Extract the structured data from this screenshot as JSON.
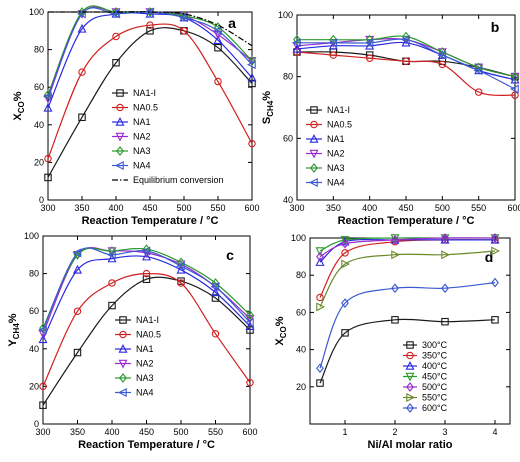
{
  "colors": {
    "NA1-I": "#1a1a1a",
    "NA0.5": "#d22020",
    "NA1": "#2a2ae0",
    "NA2": "#9a2ad0",
    "NA3": "#2a9a2a",
    "NA4": "#3a5ad0",
    "Equilibrium conversion": "#000000",
    "300°C": "#1a1a1a",
    "350°C": "#d22020",
    "400°C": "#2a2ae0",
    "450°C": "#2a9a2a",
    "500°C": "#9a2ad0",
    "550°C": "#6a8a2a",
    "600°C": "#3a5ad0"
  },
  "markers": {
    "NA1-I": "square",
    "NA0.5": "circle",
    "NA1": "triangle-up",
    "NA2": "triangle-down",
    "NA3": "diamond",
    "NA4": "triangle-left",
    "300°C": "square",
    "350°C": "circle",
    "400°C": "triangle-up",
    "450°C": "triangle-down",
    "500°C": "diamond",
    "550°C": "triangle-right",
    "600°C": "diamond"
  },
  "chart_data": [
    {
      "panel": "a",
      "type": "line",
      "xlabel": "Reaction Temperature / °C",
      "ylabel": "X_CO%",
      "x": [
        300,
        350,
        400,
        450,
        500,
        550,
        600
      ],
      "xlim": [
        300,
        600
      ],
      "ylim": [
        0,
        100
      ],
      "xticks": [
        300,
        350,
        400,
        450,
        500,
        550,
        600
      ],
      "yticks": [
        0,
        20,
        40,
        60,
        80,
        100
      ],
      "legend": "bottom-right",
      "series": [
        {
          "name": "NA1-I",
          "values": [
            12,
            44,
            73,
            90,
            90,
            81,
            62
          ]
        },
        {
          "name": "NA0.5",
          "values": [
            22,
            68,
            87,
            93,
            90,
            63,
            30
          ]
        },
        {
          "name": "NA1",
          "values": [
            49,
            91,
            99,
            99,
            97,
            85,
            65
          ]
        },
        {
          "name": "NA2",
          "values": [
            54,
            99,
            100,
            100,
            98,
            88,
            74
          ]
        },
        {
          "name": "NA3",
          "values": [
            56,
            100,
            100,
            100,
            98,
            92,
            74
          ]
        },
        {
          "name": "NA4",
          "values": [
            55,
            99,
            99,
            100,
            97,
            90,
            72
          ]
        },
        {
          "name": "Equilibrium conversion",
          "values": [
            100,
            100,
            100,
            100,
            99,
            93,
            82
          ],
          "style": "dash-dot",
          "markers": false
        }
      ]
    },
    {
      "panel": "b",
      "type": "line",
      "xlabel": "Reaction Temperature / °C",
      "ylabel": "S_CH4%",
      "x": [
        300,
        350,
        400,
        450,
        500,
        550,
        600
      ],
      "xlim": [
        300,
        600
      ],
      "ylim": [
        40,
        100
      ],
      "xticks": [
        300,
        350,
        400,
        450,
        500,
        550,
        600
      ],
      "yticks": [
        40,
        60,
        80,
        100
      ],
      "legend": "bottom-left",
      "series": [
        {
          "name": "NA1-I",
          "values": [
            88,
            88,
            87,
            85,
            85,
            83,
            80
          ]
        },
        {
          "name": "NA0.5",
          "values": [
            88,
            87,
            86,
            85,
            84,
            75,
            74
          ]
        },
        {
          "name": "NA1",
          "values": [
            89,
            90,
            90,
            91,
            87,
            82,
            79
          ]
        },
        {
          "name": "NA2",
          "values": [
            90,
            91,
            92,
            92,
            88,
            83,
            80
          ]
        },
        {
          "name": "NA3",
          "values": [
            92,
            92,
            92,
            93,
            88,
            83,
            80
          ]
        },
        {
          "name": "NA4",
          "values": [
            91,
            91,
            91,
            92,
            87,
            82,
            76
          ]
        }
      ]
    },
    {
      "panel": "c",
      "type": "line",
      "xlabel": "Reaction Temperature / °C",
      "ylabel": "Y_CH4%",
      "x": [
        300,
        350,
        400,
        450,
        500,
        550,
        600
      ],
      "xlim": [
        300,
        600
      ],
      "ylim": [
        0,
        100
      ],
      "xticks": [
        300,
        350,
        400,
        450,
        500,
        550,
        600
      ],
      "yticks": [
        0,
        20,
        40,
        60,
        80,
        100
      ],
      "legend": "bottom-right",
      "series": [
        {
          "name": "NA1-I",
          "values": [
            10,
            38,
            63,
            77,
            76,
            67,
            50
          ]
        },
        {
          "name": "NA0.5",
          "values": [
            20,
            60,
            75,
            80,
            75,
            48,
            22
          ]
        },
        {
          "name": "NA1",
          "values": [
            45,
            82,
            88,
            89,
            82,
            70,
            52
          ]
        },
        {
          "name": "NA2",
          "values": [
            48,
            90,
            92,
            91,
            85,
            73,
            56
          ]
        },
        {
          "name": "NA3",
          "values": [
            51,
            90,
            92,
            93,
            86,
            75,
            58
          ]
        },
        {
          "name": "NA4",
          "values": [
            50,
            91,
            90,
            92,
            84,
            73,
            54
          ]
        }
      ]
    },
    {
      "panel": "d",
      "type": "line",
      "xlabel": "Ni/Al molar ratio",
      "ylabel": "X_CO%",
      "x": [
        0.5,
        1,
        2,
        3,
        4
      ],
      "xlim": [
        0.3,
        4.3
      ],
      "ylim": [
        0,
        100
      ],
      "xticks": [
        1,
        2,
        3,
        4
      ],
      "yticks": [
        20,
        40,
        60,
        80,
        100
      ],
      "legend": "bottom-right",
      "series": [
        {
          "name": "300°C",
          "values": [
            22,
            49,
            56,
            55,
            56
          ]
        },
        {
          "name": "350°C",
          "values": [
            68,
            92,
            98,
            99,
            99
          ]
        },
        {
          "name": "400°C",
          "values": [
            87,
            98,
            99,
            99,
            99
          ]
        },
        {
          "name": "450°C",
          "values": [
            93,
            99,
            100,
            100,
            100
          ]
        },
        {
          "name": "500°C",
          "values": [
            90,
            97,
            99,
            100,
            100
          ]
        },
        {
          "name": "550°C",
          "values": [
            63,
            86,
            91,
            91,
            93
          ]
        },
        {
          "name": "600°C",
          "values": [
            30,
            65,
            73,
            73,
            76
          ]
        }
      ]
    }
  ]
}
